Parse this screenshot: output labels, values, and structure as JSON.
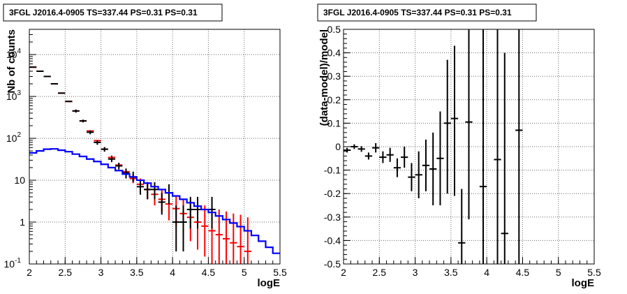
{
  "chart_data": [
    {
      "type": "histogram",
      "title": "3FGL J2016.4-0905 TS=337.44 PS=0.31 PS=0.31",
      "xlabel": "logE",
      "ylabel": "Nb of counts",
      "xlim": [
        2,
        5.5
      ],
      "ylim": [
        0.1,
        40000
      ],
      "yscale": "log",
      "grid": true,
      "x_ticks": [
        "2",
        "2.5",
        "3",
        "3.5",
        "4",
        "4.5",
        "5",
        "5.5"
      ],
      "y_ticks": [
        {
          "value": 0.1,
          "base": "10",
          "exp": "-1"
        },
        {
          "value": 1,
          "base": "1",
          "exp": ""
        },
        {
          "value": 10,
          "base": "10",
          "exp": ""
        },
        {
          "value": 100,
          "base": "10",
          "exp": "2"
        },
        {
          "value": 1000,
          "base": "10",
          "exp": "3"
        },
        {
          "value": 10000,
          "base": "10",
          "exp": "4"
        }
      ],
      "series": [
        {
          "color": "#ff0000",
          "style": "error-bars",
          "points": [
            {
              "x": 2.05,
              "y": 5000,
              "lo": 5000,
              "hi": 5000
            },
            {
              "x": 2.15,
              "y": 4000,
              "lo": 4000,
              "hi": 4000
            },
            {
              "x": 2.25,
              "y": 3000,
              "lo": 3000,
              "hi": 3000
            },
            {
              "x": 2.35,
              "y": 2000,
              "lo": 2000,
              "hi": 2000
            },
            {
              "x": 2.45,
              "y": 1200,
              "lo": 1200,
              "hi": 1200
            },
            {
              "x": 2.55,
              "y": 760,
              "lo": 760,
              "hi": 760
            },
            {
              "x": 2.65,
              "y": 450,
              "lo": 450,
              "hi": 450
            },
            {
              "x": 2.75,
              "y": 260,
              "lo": 260,
              "hi": 260
            },
            {
              "x": 2.85,
              "y": 150,
              "lo": 150,
              "hi": 150
            },
            {
              "x": 2.95,
              "y": 88,
              "lo": 88,
              "hi": 88
            },
            {
              "x": 3.05,
              "y": 55,
              "lo": 50,
              "hi": 60
            },
            {
              "x": 3.15,
              "y": 35,
              "lo": 31,
              "hi": 39
            },
            {
              "x": 3.25,
              "y": 23,
              "lo": 20,
              "hi": 26
            },
            {
              "x": 3.35,
              "y": 16,
              "lo": 13,
              "hi": 19
            },
            {
              "x": 3.45,
              "y": 11,
              "lo": 8.5,
              "hi": 14
            },
            {
              "x": 3.55,
              "y": 8,
              "lo": 5.5,
              "hi": 11
            },
            {
              "x": 3.65,
              "y": 6,
              "lo": 3.5,
              "hi": 9
            },
            {
              "x": 3.75,
              "y": 4.6,
              "lo": 2.5,
              "hi": 7.5
            },
            {
              "x": 3.85,
              "y": 3.5,
              "lo": 1.7,
              "hi": 6
            },
            {
              "x": 3.95,
              "y": 2.7,
              "lo": 1.1,
              "hi": 5.2
            },
            {
              "x": 4.05,
              "y": 2.1,
              "lo": 0.8,
              "hi": 4.4
            },
            {
              "x": 4.15,
              "y": 1.6,
              "lo": 0.5,
              "hi": 3.6
            },
            {
              "x": 4.25,
              "y": 1.3,
              "lo": 0.35,
              "hi": 3.2
            },
            {
              "x": 4.35,
              "y": 1.0,
              "lo": 0.22,
              "hi": 2.8
            },
            {
              "x": 4.45,
              "y": 0.8,
              "lo": 0.15,
              "hi": 2.5
            },
            {
              "x": 4.55,
              "y": 0.62,
              "lo": 0.1,
              "hi": 2.2
            },
            {
              "x": 4.65,
              "y": 0.5,
              "lo": 0.1,
              "hi": 2.0
            },
            {
              "x": 4.75,
              "y": 0.4,
              "lo": 0.1,
              "hi": 1.8
            },
            {
              "x": 4.85,
              "y": 0.32,
              "lo": 0.1,
              "hi": 1.6
            },
            {
              "x": 4.95,
              "y": 0.26,
              "lo": 0.1,
              "hi": 1.5
            },
            {
              "x": 5.05,
              "y": 0.2,
              "lo": 0.1,
              "hi": 1.3
            }
          ]
        },
        {
          "color": "#000000",
          "style": "error-bars",
          "points": [
            {
              "x": 2.05,
              "y": 5000,
              "lo": 5000,
              "hi": 5000
            },
            {
              "x": 2.15,
              "y": 4000,
              "lo": 4000,
              "hi": 4000
            },
            {
              "x": 2.25,
              "y": 3000,
              "lo": 3000,
              "hi": 3000
            },
            {
              "x": 2.35,
              "y": 2000,
              "lo": 2000,
              "hi": 2000
            },
            {
              "x": 2.45,
              "y": 1200,
              "lo": 1200,
              "hi": 1200
            },
            {
              "x": 2.55,
              "y": 760,
              "lo": 760,
              "hi": 760
            },
            {
              "x": 2.65,
              "y": 450,
              "lo": 410,
              "hi": 490
            },
            {
              "x": 2.75,
              "y": 260,
              "lo": 240,
              "hi": 280
            },
            {
              "x": 2.85,
              "y": 140,
              "lo": 125,
              "hi": 155
            },
            {
              "x": 2.95,
              "y": 80,
              "lo": 70,
              "hi": 90
            },
            {
              "x": 3.05,
              "y": 55,
              "lo": 48,
              "hi": 62
            },
            {
              "x": 3.15,
              "y": 32,
              "lo": 27,
              "hi": 37
            },
            {
              "x": 3.25,
              "y": 22,
              "lo": 18,
              "hi": 26
            },
            {
              "x": 3.35,
              "y": 15,
              "lo": 11,
              "hi": 19
            },
            {
              "x": 3.45,
              "y": 12,
              "lo": 9,
              "hi": 16
            },
            {
              "x": 3.55,
              "y": 7,
              "lo": 4.5,
              "hi": 10
            },
            {
              "x": 3.65,
              "y": 6,
              "lo": 3.5,
              "hi": 9
            },
            {
              "x": 3.75,
              "y": 6,
              "lo": 3.5,
              "hi": 9
            },
            {
              "x": 3.85,
              "y": 3,
              "lo": 1.5,
              "hi": 5
            },
            {
              "x": 3.95,
              "y": 5,
              "lo": 2.7,
              "hi": 8
            },
            {
              "x": 4.05,
              "y": 1,
              "lo": 0.2,
              "hi": 2.5
            },
            {
              "x": 4.15,
              "y": 1,
              "lo": 0.2,
              "hi": 2.5
            },
            {
              "x": 4.25,
              "y": 2,
              "lo": 0.7,
              "hi": 4
            },
            {
              "x": 4.35,
              "y": 2,
              "lo": 0.7,
              "hi": 4
            },
            {
              "x": 4.55,
              "y": 2,
              "lo": 0.7,
              "hi": 4
            }
          ]
        },
        {
          "color": "#0000ff",
          "style": "step",
          "x_edges": [
            2.0,
            2.1,
            2.2,
            2.3,
            2.4,
            2.5,
            2.6,
            2.7,
            2.8,
            2.9,
            3.0,
            3.1,
            3.2,
            3.3,
            3.4,
            3.5,
            3.6,
            3.7,
            3.8,
            3.9,
            4.0,
            4.1,
            4.2,
            4.3,
            4.4,
            4.5,
            4.6,
            4.7,
            4.8,
            4.9,
            5.0,
            5.1,
            5.2,
            5.3,
            5.4,
            5.5
          ],
          "values": [
            45,
            50,
            55,
            56,
            52,
            48,
            42,
            37,
            32,
            28,
            24,
            20,
            17,
            14,
            12,
            10,
            8.5,
            7,
            6,
            5,
            4.2,
            3.5,
            2.9,
            2.4,
            2.0,
            1.7,
            1.4,
            1.15,
            0.95,
            0.78,
            0.62,
            0.48,
            0.35,
            0.25,
            0.18
          ]
        }
      ]
    },
    {
      "type": "scatter-errorbars",
      "title": "3FGL J2016.4-0905 TS=337.44 PS=0.31 PS=0.31",
      "xlabel": "logE",
      "ylabel": "(data-model)/model",
      "xlim": [
        2,
        5.5
      ],
      "ylim": [
        -0.5,
        0.5
      ],
      "grid": true,
      "x_ticks": [
        "2",
        "2.5",
        "3",
        "3.5",
        "4",
        "4.5",
        "5",
        "5.5"
      ],
      "y_ticks": [
        "-0.5",
        "-0.4",
        "-0.3",
        "-0.2",
        "-0.1",
        "0",
        "0.1",
        "0.2",
        "0.3",
        "0.4",
        "0.5"
      ],
      "series": [
        {
          "color": "#000000",
          "points": [
            {
              "x": 2.05,
              "y": -0.015,
              "lo": -0.025,
              "hi": -0.005
            },
            {
              "x": 2.15,
              "y": 0.0,
              "lo": -0.01,
              "hi": 0.01
            },
            {
              "x": 2.25,
              "y": -0.01,
              "lo": -0.022,
              "hi": 0.002
            },
            {
              "x": 2.35,
              "y": -0.04,
              "lo": -0.055,
              "hi": -0.025
            },
            {
              "x": 2.45,
              "y": -0.005,
              "lo": -0.025,
              "hi": 0.015
            },
            {
              "x": 2.55,
              "y": -0.045,
              "lo": -0.07,
              "hi": -0.02
            },
            {
              "x": 2.65,
              "y": -0.035,
              "lo": -0.065,
              "hi": -0.005
            },
            {
              "x": 2.75,
              "y": -0.09,
              "lo": -0.13,
              "hi": -0.05
            },
            {
              "x": 2.85,
              "y": -0.045,
              "lo": -0.09,
              "hi": 0.0
            },
            {
              "x": 2.95,
              "y": -0.13,
              "lo": -0.19,
              "hi": -0.07
            },
            {
              "x": 3.05,
              "y": -0.12,
              "lo": -0.22,
              "hi": -0.02
            },
            {
              "x": 3.15,
              "y": -0.08,
              "lo": -0.19,
              "hi": 0.03
            },
            {
              "x": 3.25,
              "y": -0.095,
              "lo": -0.25,
              "hi": 0.06
            },
            {
              "x": 3.35,
              "y": -0.05,
              "lo": -0.25,
              "hi": 0.15
            },
            {
              "x": 3.45,
              "y": 0.1,
              "lo": -0.2,
              "hi": 0.37
            },
            {
              "x": 3.55,
              "y": 0.12,
              "lo": -0.21,
              "hi": 0.43
            },
            {
              "x": 3.65,
              "y": -0.41,
              "lo": -0.5,
              "hi": -0.18
            },
            {
              "x": 3.75,
              "y": 0.105,
              "lo": -0.31,
              "hi": 0.5
            },
            {
              "x": 3.95,
              "y": -0.17,
              "lo": -0.5,
              "hi": 0.5
            },
            {
              "x": 4.15,
              "y": -0.055,
              "lo": -0.5,
              "hi": 0.5
            },
            {
              "x": 4.25,
              "y": -0.37,
              "lo": -0.5,
              "hi": 0.4
            },
            {
              "x": 4.45,
              "y": 0.07,
              "lo": -0.5,
              "hi": 0.5
            }
          ]
        }
      ]
    }
  ]
}
